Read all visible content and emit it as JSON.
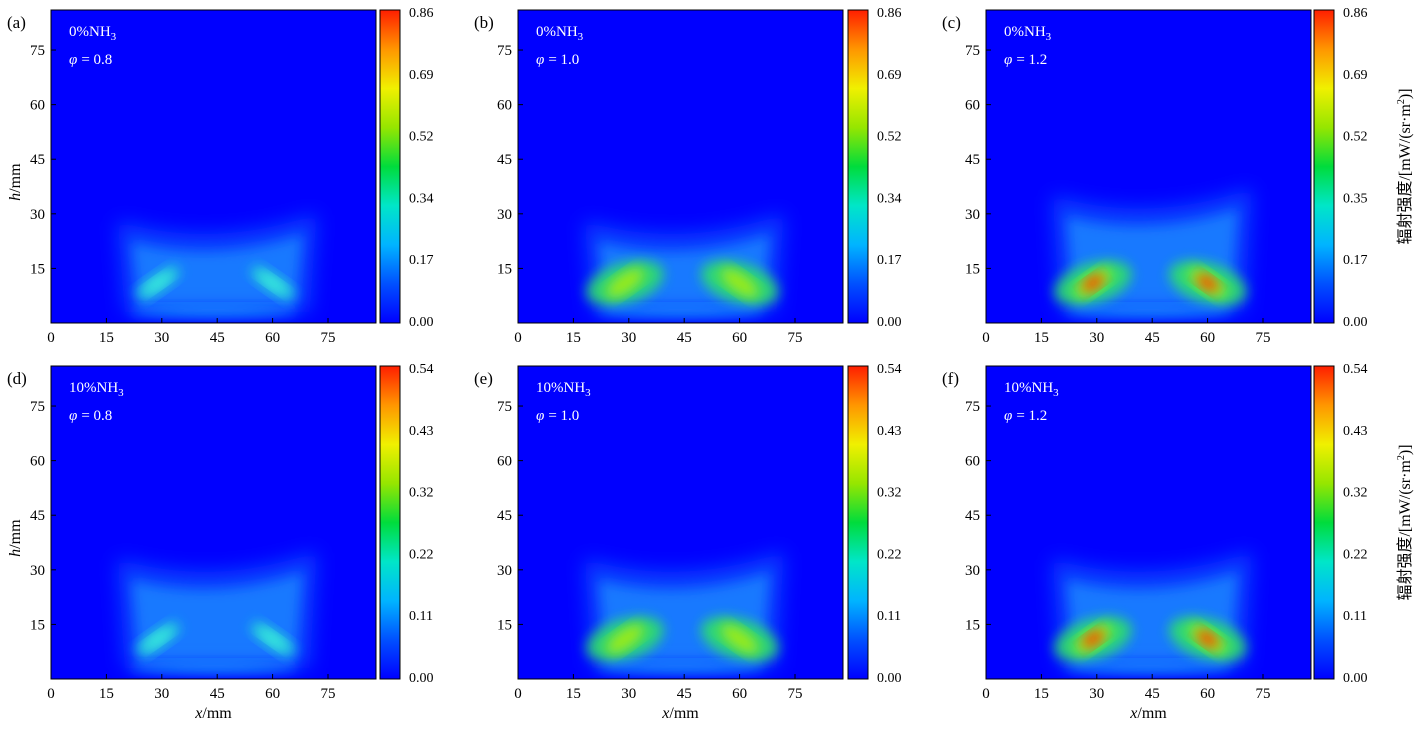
{
  "chart_data": [
    {
      "type": "heatmap",
      "panel": "(a)",
      "nh3": "0%NH",
      "nh3_sub": "3",
      "phi": "= 0.8",
      "hot_level": 0.6,
      "x_ticks": [
        "0",
        "15",
        "30",
        "45",
        "60",
        "75"
      ],
      "y_ticks": [
        "15",
        "30",
        "45",
        "60",
        "75"
      ],
      "colorbar_ticks": [
        "0.86",
        "0.69",
        "0.52",
        "0.34",
        "0.17",
        "0.00"
      ],
      "colorbar_range": [
        0,
        0.86
      ],
      "ylabel": "h",
      "ylabel_unit": "/mm",
      "xlabel": "",
      "colorbar_label": ""
    },
    {
      "type": "heatmap",
      "panel": "(b)",
      "nh3": "0%NH",
      "nh3_sub": "3",
      "phi": "= 1.0",
      "hot_level": 0.9,
      "x_ticks": [
        "0",
        "15",
        "30",
        "45",
        "60",
        "75"
      ],
      "y_ticks": [
        "15",
        "30",
        "45",
        "60",
        "75"
      ],
      "colorbar_ticks": [
        "0.86",
        "0.69",
        "0.52",
        "0.34",
        "0.17",
        "0.00"
      ],
      "colorbar_range": [
        0,
        0.86
      ],
      "ylabel": "",
      "xlabel": "",
      "colorbar_label": ""
    },
    {
      "type": "heatmap",
      "panel": "(c)",
      "nh3": "0%NH",
      "nh3_sub": "3",
      "phi": "= 1.2",
      "hot_level": 1.0,
      "x_ticks": [
        "0",
        "15",
        "30",
        "45",
        "60",
        "75"
      ],
      "y_ticks": [
        "15",
        "30",
        "45",
        "60",
        "75"
      ],
      "colorbar_ticks": [
        "0.86",
        "0.69",
        "0.52",
        "0.35",
        "0.17",
        "0.00"
      ],
      "colorbar_range": [
        0,
        0.86
      ],
      "ylabel": "",
      "xlabel": "",
      "colorbar_label": "辐射强度/[mW/(sr·m",
      "colorbar_label_sup": "2",
      "colorbar_label_end": ")]"
    },
    {
      "type": "heatmap",
      "panel": "(d)",
      "nh3": "10%NH",
      "nh3_sub": "3",
      "phi": "= 0.8",
      "hot_level": 0.6,
      "x_ticks": [
        "0",
        "15",
        "30",
        "45",
        "60",
        "75"
      ],
      "y_ticks": [
        "15",
        "30",
        "45",
        "60",
        "75"
      ],
      "colorbar_ticks": [
        "0.54",
        "0.43",
        "0.32",
        "0.22",
        "0.11",
        "0.00"
      ],
      "colorbar_range": [
        0,
        0.54
      ],
      "ylabel": "h",
      "ylabel_unit": "/mm",
      "xlabel": "x",
      "xlabel_unit": "/mm",
      "colorbar_label": ""
    },
    {
      "type": "heatmap",
      "panel": "(e)",
      "nh3": "10%NH",
      "nh3_sub": "3",
      "phi": "= 1.0",
      "hot_level": 0.9,
      "x_ticks": [
        "0",
        "15",
        "30",
        "45",
        "60",
        "75"
      ],
      "y_ticks": [
        "15",
        "30",
        "45",
        "60",
        "75"
      ],
      "colorbar_ticks": [
        "0.54",
        "0.43",
        "0.32",
        "0.22",
        "0.11",
        "0.00"
      ],
      "colorbar_range": [
        0,
        0.54
      ],
      "ylabel": "",
      "xlabel": "x",
      "xlabel_unit": "/mm",
      "colorbar_label": ""
    },
    {
      "type": "heatmap",
      "panel": "(f)",
      "nh3": "10%NH",
      "nh3_sub": "3",
      "phi": "= 1.2",
      "hot_level": 1.0,
      "x_ticks": [
        "0",
        "15",
        "30",
        "45",
        "60",
        "75"
      ],
      "y_ticks": [
        "15",
        "30",
        "45",
        "60",
        "75"
      ],
      "colorbar_ticks": [
        "0.54",
        "0.43",
        "0.32",
        "0.22",
        "0.11",
        "0.00"
      ],
      "colorbar_range": [
        0,
        0.54
      ],
      "ylabel": "",
      "xlabel": "x",
      "xlabel_unit": "/mm",
      "colorbar_label": "辐射强度/[mW/(sr·m",
      "colorbar_label_sup": "2",
      "colorbar_label_end": ")]"
    }
  ],
  "phi_symbol": "φ",
  "colors": {
    "background": "#0000ff",
    "colormap": [
      "#0000ff",
      "#0050ff",
      "#00b4ff",
      "#00e6c8",
      "#00dc3c",
      "#96e600",
      "#f0f000",
      "#ff9600",
      "#ff1e00"
    ]
  }
}
